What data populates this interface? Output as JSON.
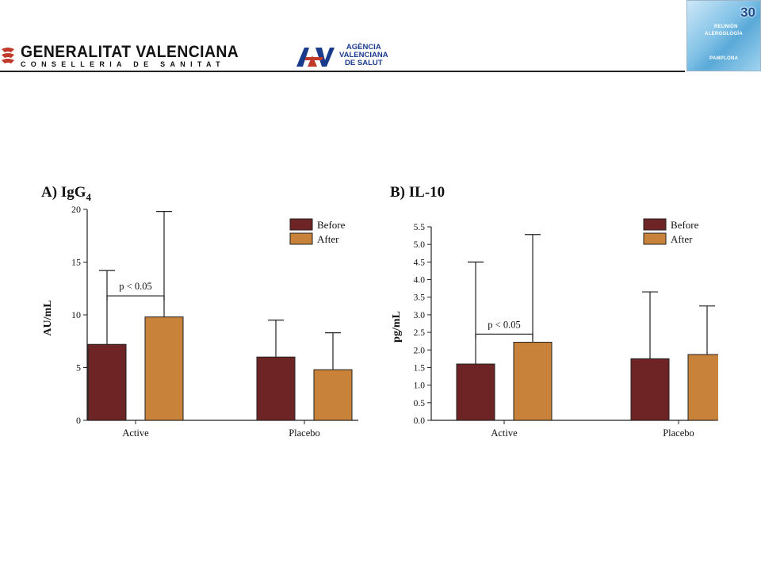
{
  "header": {
    "gv_title": "GENERALITAT VALENCIANA",
    "gv_subtitle": "CONSELLERIA DE SANITAT",
    "avs_mark": "AVS",
    "avs_line1": "AGÈNCIA",
    "avs_line2": "VALENCIANA",
    "avs_line3": "DE SALUT",
    "badge_number": "30",
    "badge_line1": "REUNIÓN",
    "badge_line2": "ALERGOLOGÍA",
    "badge_line3": "PAMPLONA"
  },
  "legend": {
    "before": "Before",
    "after": "After"
  },
  "colors": {
    "before": "#6e2424",
    "after": "#c8823a",
    "axis": "#222222"
  },
  "chart_data": [
    {
      "type": "bar",
      "panel_label": "A)",
      "title": "IgG",
      "title_subscript": "4",
      "ylabel": "AU/mL",
      "xlabel": "",
      "categories": [
        "Active",
        "Placebo"
      ],
      "ylim": [
        0,
        20
      ],
      "yticks": [
        "0",
        "5",
        "10",
        "15",
        "20"
      ],
      "ytick_values": [
        0,
        5,
        10,
        15,
        20
      ],
      "series": [
        {
          "name": "Before",
          "values": [
            7.2,
            6.0
          ],
          "error_upper": [
            14.2,
            9.5
          ]
        },
        {
          "name": "After",
          "values": [
            9.8,
            4.8
          ],
          "error_upper": [
            19.8,
            8.3
          ]
        }
      ],
      "annotation": {
        "text": "p < 0.05",
        "category": "Active",
        "level": 11.8
      },
      "legend_position": "top-right",
      "grid": false
    },
    {
      "type": "bar",
      "panel_label": "B)",
      "title": "IL-10",
      "title_subscript": "",
      "ylabel": "pg/mL",
      "xlabel": "",
      "categories": [
        "Active",
        "Placebo"
      ],
      "ylim": [
        0,
        5.5
      ],
      "yticks": [
        "0.0",
        "0.5",
        "1.0",
        "1.5",
        "2.0",
        "2.5",
        "3.0",
        "3.5",
        "4.0",
        "4.5",
        "5.0",
        "5.5"
      ],
      "ytick_values": [
        0,
        0.5,
        1.0,
        1.5,
        2.0,
        2.5,
        3.0,
        3.5,
        4.0,
        4.5,
        5.0,
        5.5
      ],
      "series": [
        {
          "name": "Before",
          "values": [
            1.6,
            1.75
          ],
          "error_upper": [
            4.5,
            3.65
          ]
        },
        {
          "name": "After",
          "values": [
            2.22,
            1.87
          ],
          "error_upper": [
            5.28,
            3.25
          ]
        }
      ],
      "annotation": {
        "text": "p < 0.05",
        "category": "Active",
        "level": 2.45
      },
      "legend_position": "top-right",
      "grid": false
    }
  ]
}
